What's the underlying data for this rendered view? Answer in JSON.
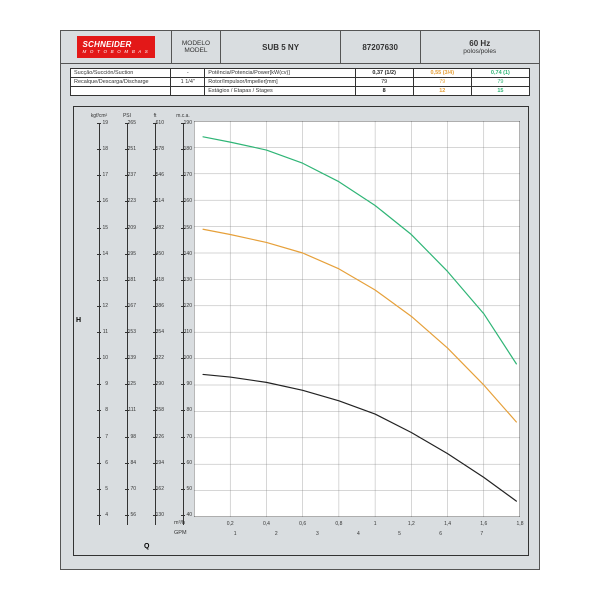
{
  "header": {
    "brand": "SCHNEIDER",
    "brand_sub": "M O T O B O M B A S",
    "modelo_lbl1": "MODELO",
    "modelo_lbl2": "MODEL",
    "model": "SUB 5 NY",
    "code": "87207630",
    "hz": "60 Hz",
    "hz_sub": "polos/poles"
  },
  "spec": {
    "rows": [
      {
        "lbl": "Sucção/Succión/Suction",
        "v": "-",
        "p": "Potência/Potencia/Power[kW(cv)]",
        "a": "0,37 (1/2)",
        "b": "0,55 (3/4)",
        "c": "0,74 (1)"
      },
      {
        "lbl": "Recalque/Descarga/Discharge",
        "v": "1 1/4\"",
        "p": "Rotor/Impulsor/Impeller[mm]",
        "a": "79",
        "b": "79",
        "c": "79"
      },
      {
        "lbl": "",
        "v": "",
        "p": "Estágios / Etapas / Stages",
        "a": "8",
        "b": "12",
        "c": "15"
      }
    ],
    "colors": {
      "a": "#222222",
      "b": "#e6a03a",
      "c": "#2fb576"
    }
  },
  "chart": {
    "h_label": "H",
    "q_label": "Q",
    "y_headers": [
      "kgf/cm²",
      "PSI",
      "ft",
      "m.c.a."
    ],
    "y_ranges": [
      {
        "min": 4,
        "max": 19,
        "step": 1,
        "top": 18,
        "bot": 4
      },
      {
        "min": 56,
        "max": 265,
        "vals": [
          265,
          251,
          237,
          223,
          209,
          195,
          181,
          167,
          153,
          139,
          125,
          111,
          98,
          84,
          70,
          56
        ]
      },
      {
        "min": 130,
        "max": 610,
        "vals": [
          610,
          578,
          546,
          514,
          482,
          450,
          418,
          386,
          354,
          322,
          290,
          258,
          226,
          194,
          162,
          130
        ]
      },
      {
        "min": 40,
        "max": 190,
        "step": 10
      }
    ],
    "x_mh": {
      "unit": "m³/h",
      "min": 0,
      "max": 1.8,
      "vals": [
        0.2,
        0.4,
        0.6,
        0.8,
        1,
        1.2,
        1.4,
        1.6,
        1.8
      ]
    },
    "x_gpm": {
      "unit": "GPM",
      "vals": [
        1,
        2,
        3,
        4,
        5,
        6,
        7
      ]
    },
    "ylim": [
      40,
      190
    ],
    "xlim": [
      0,
      1.8
    ],
    "grid_color": "#777",
    "series": [
      {
        "name": "8-stage",
        "color": "#222222",
        "width": 1.2,
        "pts": [
          [
            0.05,
            94
          ],
          [
            0.2,
            93
          ],
          [
            0.4,
            91
          ],
          [
            0.6,
            88
          ],
          [
            0.8,
            84
          ],
          [
            1.0,
            79
          ],
          [
            1.2,
            72
          ],
          [
            1.4,
            64
          ],
          [
            1.6,
            55
          ],
          [
            1.78,
            46
          ]
        ]
      },
      {
        "name": "12-stage",
        "color": "#e6a03a",
        "width": 1.2,
        "pts": [
          [
            0.05,
            149
          ],
          [
            0.2,
            147
          ],
          [
            0.4,
            144
          ],
          [
            0.6,
            140
          ],
          [
            0.8,
            134
          ],
          [
            1.0,
            126
          ],
          [
            1.2,
            116
          ],
          [
            1.4,
            104
          ],
          [
            1.6,
            90
          ],
          [
            1.78,
            76
          ]
        ]
      },
      {
        "name": "15-stage",
        "color": "#2fb576",
        "width": 1.2,
        "pts": [
          [
            0.05,
            184
          ],
          [
            0.2,
            182
          ],
          [
            0.4,
            179
          ],
          [
            0.6,
            174
          ],
          [
            0.8,
            167
          ],
          [
            1.0,
            158
          ],
          [
            1.2,
            147
          ],
          [
            1.4,
            133
          ],
          [
            1.6,
            117
          ],
          [
            1.78,
            98
          ]
        ]
      }
    ]
  }
}
